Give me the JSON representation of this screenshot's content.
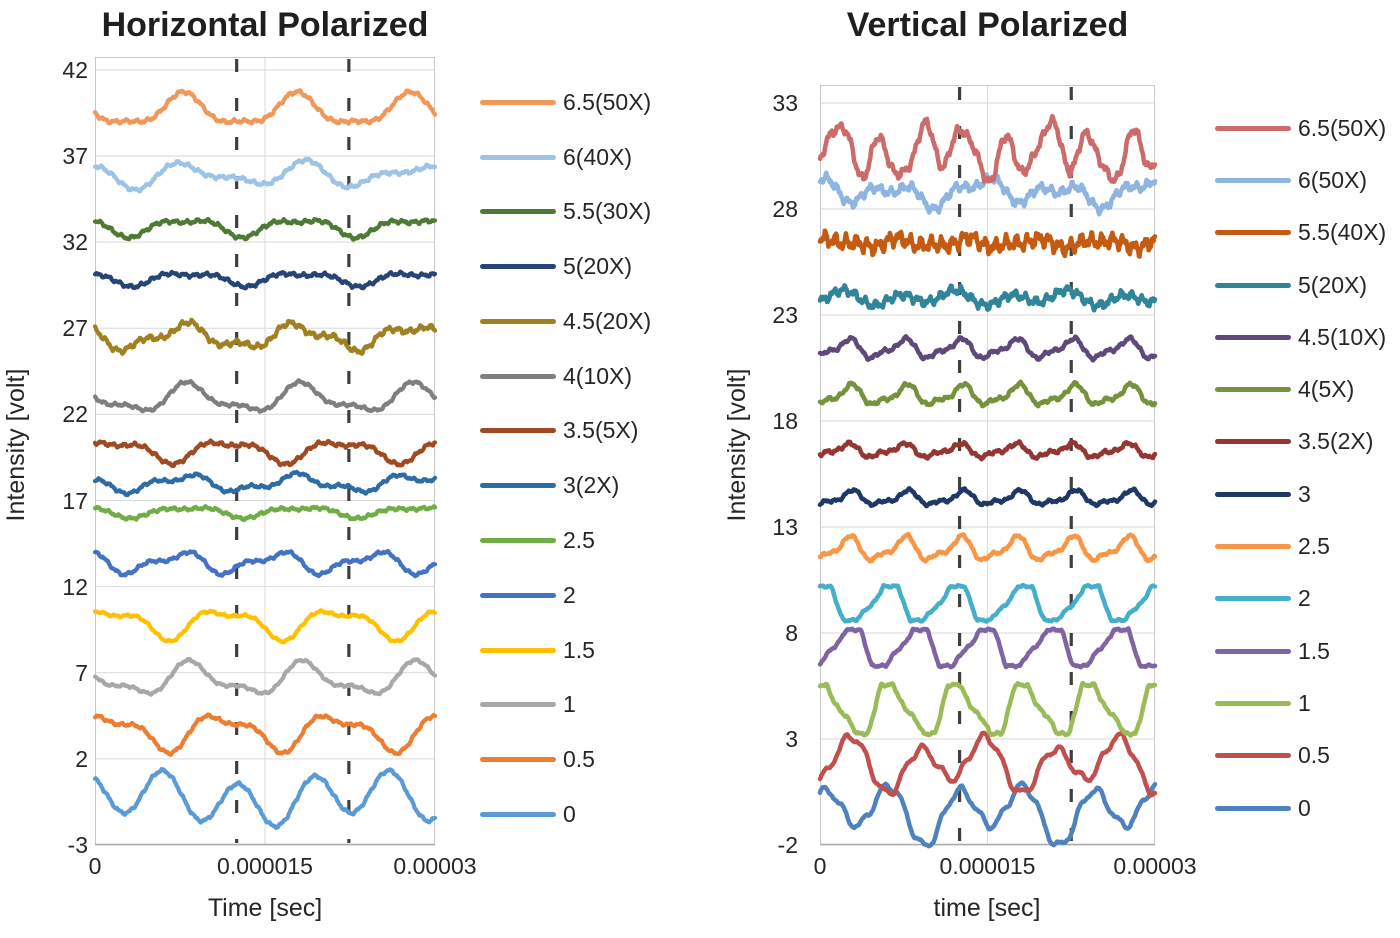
{
  "figure": {
    "background": "#ffffff",
    "text_color": "#262626",
    "grid_color": "#D9D9D9",
    "border_color": "#C9C9C9",
    "axis_color": "#ABABAB",
    "dash_line_color": "#3F3F3F"
  },
  "chart_data": [
    {
      "type": "line",
      "title": "Horizontal Polarized",
      "xlabel": "Time [sec]",
      "ylabel": "Intensity [volt]",
      "xlim": [
        0,
        3e-05
      ],
      "ylim": [
        -3,
        42.75
      ],
      "xticks": [
        "0",
        "0.000015",
        "0.00003"
      ],
      "xtick_values": [
        0,
        1.5e-05,
        3e-05
      ],
      "yticks": [
        42,
        37,
        32,
        27,
        22,
        17,
        12,
        7,
        2,
        -3
      ],
      "grid": true,
      "legend_position": "right",
      "dashed_vlines": [
        1.25e-05,
        2.24e-05
      ],
      "series_note": "Each trace is a waveform vs time; values encoded as baseline volts plus sinusoid components [amplitude_volts, cycles_per_window, phase_rad] with small noise amplitude in volts.",
      "series": [
        {
          "name": "6.5(50X)",
          "color": "#F1975A",
          "baseline": 39.6,
          "components": [
            [
              0.85,
              3,
              2.95
            ],
            [
              0.28,
              6,
              4.3
            ]
          ],
          "noise": 0.06
        },
        {
          "name": "6(40X)",
          "color": "#9DC3E6",
          "baseline": 35.9,
          "components": [
            [
              0.55,
              3,
              2.6
            ],
            [
              0.33,
              5,
              0.8
            ]
          ],
          "noise": 0.06
        },
        {
          "name": "5.5(30X)",
          "color": "#4E7A35",
          "baseline": 32.9,
          "components": [
            [
              0.45,
              3,
              2.8
            ],
            [
              0.2,
              6,
              1.0
            ]
          ],
          "noise": 0.06
        },
        {
          "name": "5(20X)",
          "color": "#264478",
          "baseline": 29.9,
          "components": [
            [
              0.33,
              3,
              2.7
            ],
            [
              0.16,
              6,
              0.5
            ]
          ],
          "noise": 0.06
        },
        {
          "name": "4.5(20X)",
          "color": "#A08122",
          "baseline": 26.5,
          "components": [
            [
              0.6,
              3,
              2.9
            ],
            [
              0.28,
              7,
              1.8
            ]
          ],
          "noise": 0.09
        },
        {
          "name": "4(10X)",
          "color": "#7F7F7F",
          "baseline": 22.9,
          "components": [
            [
              0.7,
              3,
              2.6
            ],
            [
              0.3,
              6,
              4.2
            ]
          ],
          "noise": 0.05
        },
        {
          "name": "3.5(5X)",
          "color": "#A04A22",
          "baseline": 19.9,
          "components": [
            [
              0.55,
              3,
              0.5
            ],
            [
              0.25,
              6,
              2.3
            ]
          ],
          "noise": 0.06
        },
        {
          "name": "3(2X)",
          "color": "#2D6CA5",
          "baseline": 18.0,
          "components": [
            [
              0.4,
              3,
              2.9
            ],
            [
              0.2,
              7,
              0.6
            ]
          ],
          "noise": 0.05
        },
        {
          "name": "2.5",
          "color": "#70AD47",
          "baseline": 16.35,
          "components": [
            [
              0.27,
              3,
              2.7
            ],
            [
              0.12,
              6,
              0.9
            ]
          ],
          "noise": 0.05
        },
        {
          "name": "2",
          "color": "#4472C4",
          "baseline": 13.4,
          "components": [
            [
              0.5,
              3.5,
              2.4
            ],
            [
              0.26,
              7,
              1.3
            ]
          ],
          "noise": 0.05
        },
        {
          "name": "1.5",
          "color": "#FFC000",
          "baseline": 9.9,
          "components": [
            [
              0.75,
              3,
              0.7
            ],
            [
              0.33,
              6,
              2.6
            ]
          ],
          "noise": 0.04
        },
        {
          "name": "1",
          "color": "#A8A8A8",
          "baseline": 6.6,
          "components": [
            [
              0.8,
              3,
              2.45
            ],
            [
              0.36,
              6,
              4.0
            ]
          ],
          "noise": 0.04
        },
        {
          "name": "0.5",
          "color": "#ED7D31",
          "baseline": 3.6,
          "components": [
            [
              0.9,
              3,
              0.8
            ],
            [
              0.4,
              6,
              2.5
            ]
          ],
          "noise": 0.05
        },
        {
          "name": "0",
          "color": "#5B9BD5",
          "baseline": -0.3,
          "components": [
            [
              1.25,
              4.5,
              2.2
            ],
            [
              0.45,
              1.5,
              0.3
            ]
          ],
          "noise": 0.05
        }
      ]
    },
    {
      "type": "line",
      "title": "Vertical Polarized",
      "xlabel": "time [sec]",
      "ylabel": "Intensity [volt]",
      "xlim": [
        0,
        3e-05
      ],
      "ylim": [
        -2,
        33.85
      ],
      "xticks": [
        "0",
        "0.000015",
        "0.00003"
      ],
      "xtick_values": [
        0,
        1.5e-05,
        3e-05
      ],
      "yticks": [
        33,
        28,
        23,
        18,
        13,
        8,
        3,
        -2
      ],
      "grid": true,
      "legend_position": "right",
      "dashed_vlines": [
        1.25e-05,
        2.25e-05
      ],
      "series_note": "Each trace is a waveform vs time; values encoded as baseline volts plus sinusoid components [amplitude_volts, cycles_per_window, phase_rad] with noise amplitude in volts; clip flattens wave tops/bottoms.",
      "series": [
        {
          "name": "6.5(50X)",
          "color": "#CD6B6A",
          "baseline": 30.7,
          "components": [
            [
              0.95,
              8,
              -1.3
            ],
            [
              0.5,
              3,
              0.9
            ],
            [
              0.3,
              13,
              0.4
            ]
          ],
          "noise": 0.12
        },
        {
          "name": "6(50X)",
          "color": "#8EB4E0",
          "baseline": 28.8,
          "components": [
            [
              0.4,
              4,
              2.2
            ],
            [
              0.28,
              8,
              0.3
            ],
            [
              0.2,
              2,
              1.2
            ]
          ],
          "noise": 0.12
        },
        {
          "name": "5.5(40X)",
          "color": "#C55A11",
          "baseline": 26.4,
          "components": [
            [
              0.15,
              5,
              0.4
            ],
            [
              0.1,
              9,
              1.4
            ]
          ],
          "noise": 0.2
        },
        {
          "name": "5(20X)",
          "color": "#31859B",
          "baseline": 23.8,
          "components": [
            [
              0.26,
              6,
              -1.2
            ],
            [
              0.14,
              3,
              0.8
            ]
          ],
          "noise": 0.12
        },
        {
          "name": "4.5(10X)",
          "color": "#5F497A",
          "baseline": 21.4,
          "components": [
            [
              0.38,
              6,
              -1.5
            ],
            [
              0.16,
              12,
              0.5
            ]
          ],
          "noise": 0.05
        },
        {
          "name": "4(5X)",
          "color": "#76923C",
          "baseline": 19.2,
          "components": [
            [
              0.4,
              6,
              -1.8
            ],
            [
              0.17,
              12,
              0.3
            ]
          ],
          "noise": 0.05
        },
        {
          "name": "3.5(2X)",
          "color": "#943634",
          "baseline": 16.6,
          "components": [
            [
              0.26,
              6,
              -1.4
            ],
            [
              0.12,
              12,
              0.7
            ]
          ],
          "noise": 0.05
        },
        {
          "name": "3",
          "color": "#1F3864",
          "baseline": 14.35,
          "components": [
            [
              0.28,
              6,
              -1.9
            ],
            [
              0.13,
              12,
              0.2
            ]
          ],
          "noise": 0.04
        },
        {
          "name": "2.5",
          "color": "#F79646",
          "baseline": 11.95,
          "components": [
            [
              0.48,
              6,
              -1.6
            ],
            [
              0.2,
              12,
              0.6
            ]
          ],
          "noise": 0.04
        },
        {
          "name": "2",
          "color": "#45AECB",
          "baseline": 9.4,
          "components": [
            [
              1.0,
              5,
              1.5
            ],
            [
              0.28,
              10,
              0.2
            ]
          ],
          "clip": 0.8,
          "noise": 0.03
        },
        {
          "name": "1.5",
          "color": "#8064A2",
          "baseline": 7.3,
          "components": [
            [
              1.1,
              5,
              -1.2
            ],
            [
              0.33,
              10,
              0.8
            ]
          ],
          "clip": 0.85,
          "noise": 0.03
        },
        {
          "name": "1",
          "color": "#9BBB59",
          "baseline": 4.4,
          "components": [
            [
              1.3,
              5,
              1.2
            ],
            [
              0.4,
              10,
              2.2
            ]
          ],
          "clip": 1.15,
          "noise": 0.04
        },
        {
          "name": "0.5",
          "color": "#C0504D",
          "baseline": 1.8,
          "components": [
            [
              1.0,
              5,
              -1.5
            ],
            [
              0.45,
              2.5,
              0.9
            ],
            [
              0.18,
              17,
              0.0
            ]
          ],
          "noise": 0.03
        },
        {
          "name": "0",
          "color": "#4F81BD",
          "baseline": -0.45,
          "components": [
            [
              1.1,
              5,
              1.2
            ],
            [
              0.5,
              2.5,
              -0.4
            ],
            [
              0.18,
              17,
              0.5
            ]
          ],
          "noise": 0.03
        }
      ]
    }
  ]
}
